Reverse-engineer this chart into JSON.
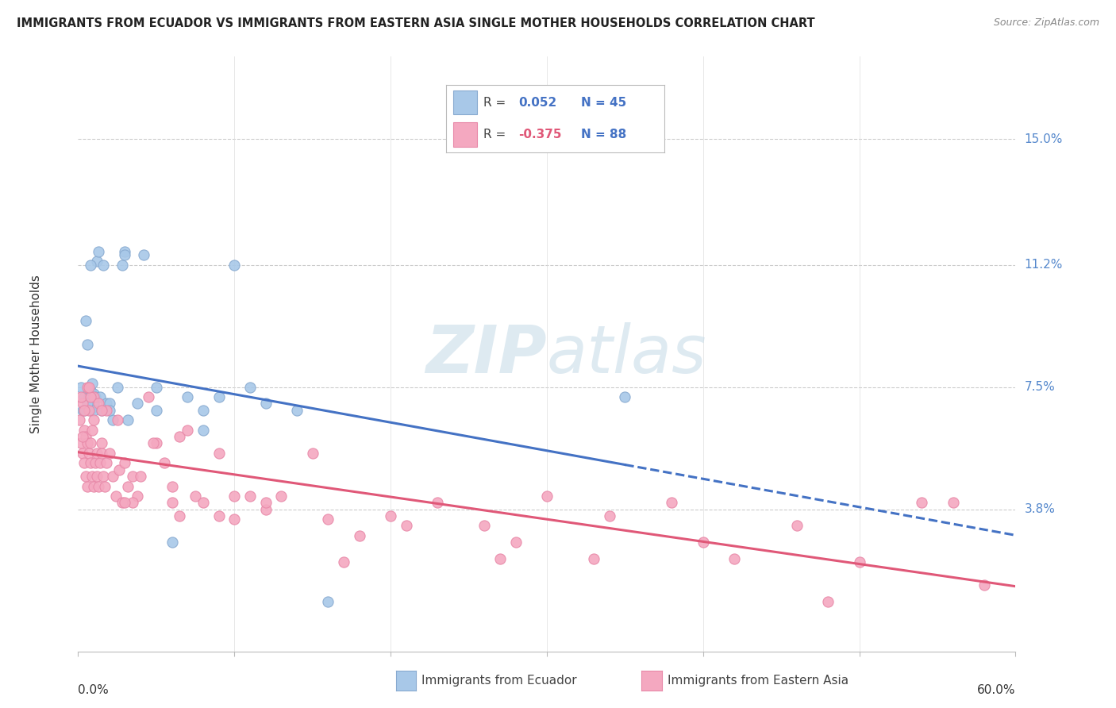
{
  "title": "IMMIGRANTS FROM ECUADOR VS IMMIGRANTS FROM EASTERN ASIA SINGLE MOTHER HOUSEHOLDS CORRELATION CHART",
  "source": "Source: ZipAtlas.com",
  "ylabel": "Single Mother Households",
  "ytick_vals": [
    0.038,
    0.075,
    0.112,
    0.15
  ],
  "ytick_labels": [
    "3.8%",
    "7.5%",
    "11.2%",
    "15.0%"
  ],
  "xmin": 0.0,
  "xmax": 0.6,
  "ymin": -0.005,
  "ymax": 0.175,
  "color_blue": "#a8c8e8",
  "color_pink": "#f4a8c0",
  "edge_blue": "#88aad0",
  "edge_pink": "#e888a8",
  "line_blue": "#4472c4",
  "line_pink": "#e05878",
  "ecuador_x": [
    0.002,
    0.003,
    0.004,
    0.005,
    0.006,
    0.007,
    0.008,
    0.008,
    0.009,
    0.01,
    0.01,
    0.011,
    0.012,
    0.013,
    0.014,
    0.016,
    0.018,
    0.02,
    0.022,
    0.025,
    0.028,
    0.03,
    0.032,
    0.038,
    0.042,
    0.05,
    0.06,
    0.07,
    0.08,
    0.09,
    0.1,
    0.11,
    0.12,
    0.14,
    0.16,
    0.35,
    0.004,
    0.006,
    0.008,
    0.01,
    0.015,
    0.02,
    0.03,
    0.05,
    0.08
  ],
  "ecuador_y": [
    0.075,
    0.068,
    0.072,
    0.095,
    0.088,
    0.072,
    0.068,
    0.074,
    0.076,
    0.07,
    0.073,
    0.072,
    0.113,
    0.116,
    0.072,
    0.112,
    0.07,
    0.07,
    0.065,
    0.075,
    0.112,
    0.116,
    0.065,
    0.07,
    0.115,
    0.075,
    0.028,
    0.072,
    0.062,
    0.072,
    0.112,
    0.075,
    0.07,
    0.068,
    0.01,
    0.072,
    0.068,
    0.07,
    0.112,
    0.068,
    0.068,
    0.068,
    0.115,
    0.068,
    0.068
  ],
  "eastern_asia_x": [
    0.001,
    0.002,
    0.003,
    0.003,
    0.004,
    0.004,
    0.005,
    0.005,
    0.006,
    0.006,
    0.007,
    0.007,
    0.008,
    0.008,
    0.009,
    0.009,
    0.01,
    0.01,
    0.011,
    0.012,
    0.012,
    0.013,
    0.014,
    0.015,
    0.015,
    0.016,
    0.017,
    0.018,
    0.02,
    0.022,
    0.024,
    0.026,
    0.028,
    0.03,
    0.032,
    0.035,
    0.038,
    0.04,
    0.045,
    0.05,
    0.055,
    0.06,
    0.065,
    0.07,
    0.075,
    0.08,
    0.09,
    0.1,
    0.11,
    0.12,
    0.13,
    0.15,
    0.17,
    0.2,
    0.23,
    0.26,
    0.3,
    0.34,
    0.38,
    0.42,
    0.46,
    0.5,
    0.54,
    0.58,
    0.002,
    0.004,
    0.006,
    0.008,
    0.01,
    0.013,
    0.018,
    0.025,
    0.035,
    0.048,
    0.065,
    0.09,
    0.12,
    0.16,
    0.21,
    0.27,
    0.33,
    0.4,
    0.48,
    0.56,
    0.003,
    0.007,
    0.015,
    0.03,
    0.06,
    0.1,
    0.18,
    0.28
  ],
  "eastern_asia_y": [
    0.065,
    0.058,
    0.055,
    0.07,
    0.052,
    0.062,
    0.048,
    0.06,
    0.045,
    0.058,
    0.055,
    0.068,
    0.052,
    0.058,
    0.048,
    0.062,
    0.045,
    0.072,
    0.052,
    0.048,
    0.055,
    0.045,
    0.052,
    0.055,
    0.058,
    0.048,
    0.045,
    0.052,
    0.055,
    0.048,
    0.042,
    0.05,
    0.04,
    0.052,
    0.045,
    0.048,
    0.042,
    0.048,
    0.072,
    0.058,
    0.052,
    0.045,
    0.06,
    0.062,
    0.042,
    0.04,
    0.055,
    0.042,
    0.042,
    0.038,
    0.042,
    0.055,
    0.022,
    0.036,
    0.04,
    0.033,
    0.042,
    0.036,
    0.04,
    0.023,
    0.033,
    0.022,
    0.04,
    0.015,
    0.072,
    0.068,
    0.075,
    0.072,
    0.065,
    0.07,
    0.068,
    0.065,
    0.04,
    0.058,
    0.036,
    0.036,
    0.04,
    0.035,
    0.033,
    0.023,
    0.023,
    0.028,
    0.01,
    0.04,
    0.06,
    0.075,
    0.068,
    0.04,
    0.04,
    0.035,
    0.03,
    0.028
  ]
}
